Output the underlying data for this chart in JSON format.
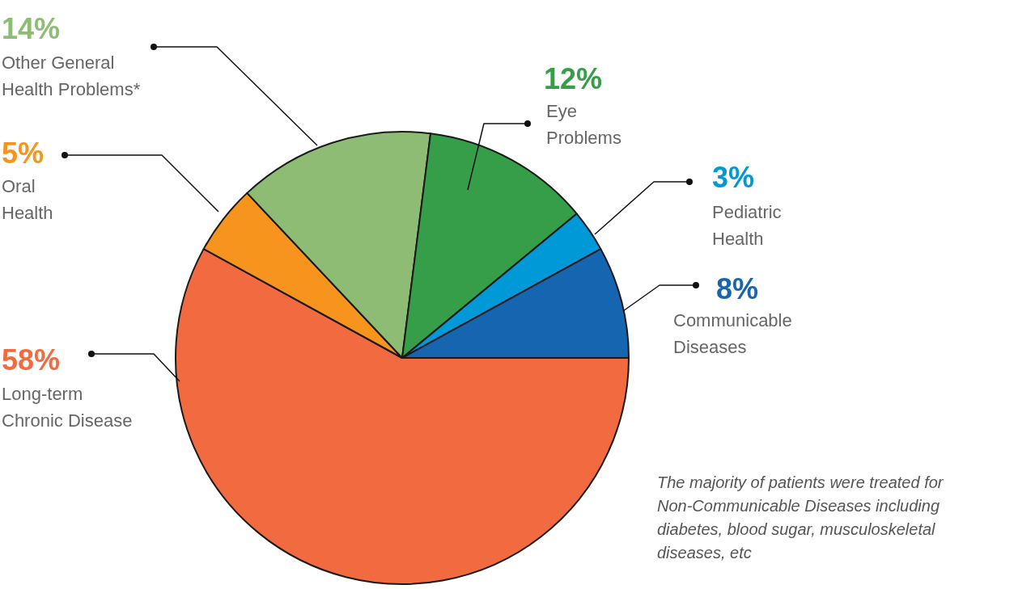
{
  "chart_data": {
    "type": "pie",
    "categories": [
      "Long-term Chronic Disease",
      "Oral Health",
      "Other General Health Problems*",
      "Eye Problems",
      "Pediatric Health",
      "Communicable Diseases"
    ],
    "values": [
      58,
      5,
      14,
      12,
      3,
      8
    ],
    "value_labels": [
      "58%",
      "5%",
      "14%",
      "12%",
      "3%",
      "8%"
    ],
    "colors": [
      "#f26a3f",
      "#f7941d",
      "#8fbc74",
      "#369e48",
      "#0099d8",
      "#1565b0"
    ],
    "legend": false,
    "annotations": [
      "The majority of patients were treated for Non-Communicable Diseases including diabetes, blood sugar, musculoskeletal diseases, etc"
    ]
  }
}
